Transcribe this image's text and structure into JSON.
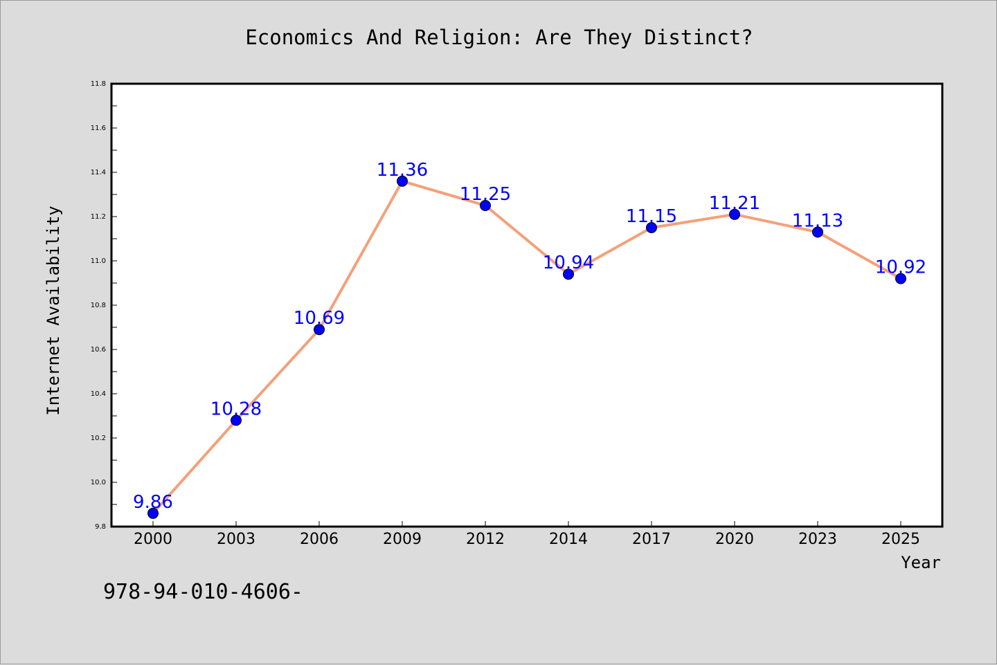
{
  "colors": {
    "background": "#dcdcdc",
    "plot_background": "#ffffff",
    "line": "#f4a07a",
    "marker": "#0000ff",
    "data_label": "#0000ff",
    "text": "#000000"
  },
  "footer_text": "978-94-010-4606-",
  "chart_data": {
    "type": "line",
    "title": "Economics And Religion: Are They Distinct?",
    "xlabel": "Year",
    "ylabel": "Internet Availability",
    "categories": [
      "2000",
      "2003",
      "2006",
      "2009",
      "2012",
      "2014",
      "2017",
      "2020",
      "2023",
      "2025"
    ],
    "series": [
      {
        "values": [
          9.86,
          10.28,
          10.69,
          11.36,
          11.25,
          10.94,
          11.15,
          11.21,
          11.13,
          10.92
        ],
        "labels": [
          "9.86",
          "10.28",
          "10.69",
          "11.36",
          "11.25",
          "10.94",
          "11.15",
          "11.21",
          "11.13",
          "10.92"
        ]
      }
    ],
    "ylim": [
      9.8,
      11.8
    ],
    "yticks": [
      "9.8",
      "10.0",
      "10.2",
      "10.4",
      "10.6",
      "10.8",
      "11.0",
      "11.2",
      "11.4",
      "11.6",
      "11.8"
    ],
    "grid": false,
    "legend": "none"
  }
}
